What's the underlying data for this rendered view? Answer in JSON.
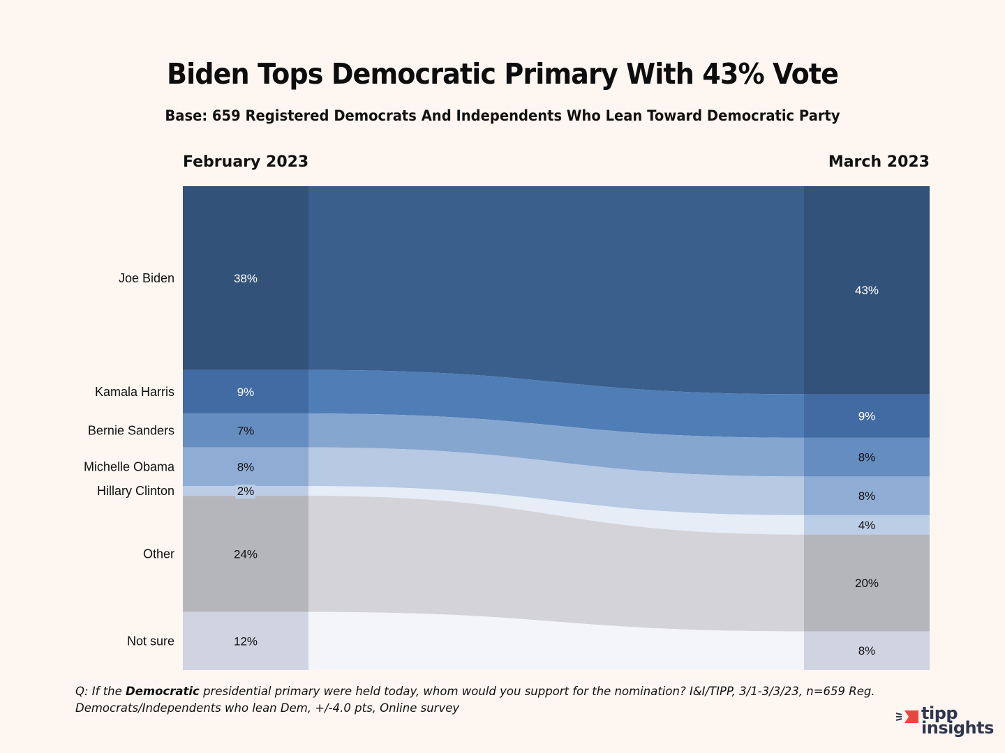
{
  "header": {
    "title": "Biden Tops Democratic Primary With 43% Vote",
    "subtitle": "Base: 659 Registered Democrats And Independents Who Lean Toward Democratic Party"
  },
  "chart_data": {
    "type": "sankey-stacked",
    "title": "Biden Tops Democratic Primary With 43% Vote",
    "subtitle": "Base: 659 Registered Democrats And Independents Who Lean Toward Democratic Party",
    "periods": [
      "February 2023",
      "March 2023"
    ],
    "categories": [
      "Joe Biden",
      "Kamala Harris",
      "Bernie Sanders",
      "Michelle Obama",
      "Hillary Clinton",
      "Other",
      "Not sure"
    ],
    "series": [
      {
        "name": "February 2023",
        "values": [
          38,
          9,
          7,
          8,
          2,
          24,
          12
        ],
        "labels": [
          "38%",
          "9%",
          "7%",
          "8%",
          "2%",
          "24%",
          "12%"
        ]
      },
      {
        "name": "March 2023",
        "values": [
          43,
          9,
          8,
          8,
          4,
          20,
          8
        ],
        "labels": [
          "43%",
          "9%",
          "8%",
          "8%",
          "4%",
          "20%",
          "8%"
        ]
      }
    ],
    "colors": {
      "bar": [
        "#32527a",
        "#426aa3",
        "#658dc0",
        "#8fadd4",
        "#bccde6",
        "#b5b6bb",
        "#d0d3e0"
      ],
      "flow": [
        "#3b5f8d",
        "#4f7db6",
        "#85a6cf",
        "#b7c9e3",
        "#e6edf6",
        "#d3d3d8",
        "#f4f5f8"
      ],
      "label_text": [
        "#ffffff",
        "#ffffff",
        "#111111",
        "#111111",
        "#111111",
        "#111111",
        "#111111"
      ]
    },
    "ylim": [
      0,
      100
    ]
  },
  "footnote": {
    "prefix": "Q:  If the ",
    "emphasis": "Democratic",
    "line1_rest": "  presidential primary were held today, whom would you support for the nomination? I&I/TIPP, 3/1-3/3/23, n=659 Reg.",
    "line2": "Democrats/Independents who lean Dem, +/-4.0 pts, Online survey"
  },
  "logo": {
    "line1": "tipp",
    "line2": "insights",
    "accent_color": "#e8473f",
    "text_color": "#2e3650"
  }
}
